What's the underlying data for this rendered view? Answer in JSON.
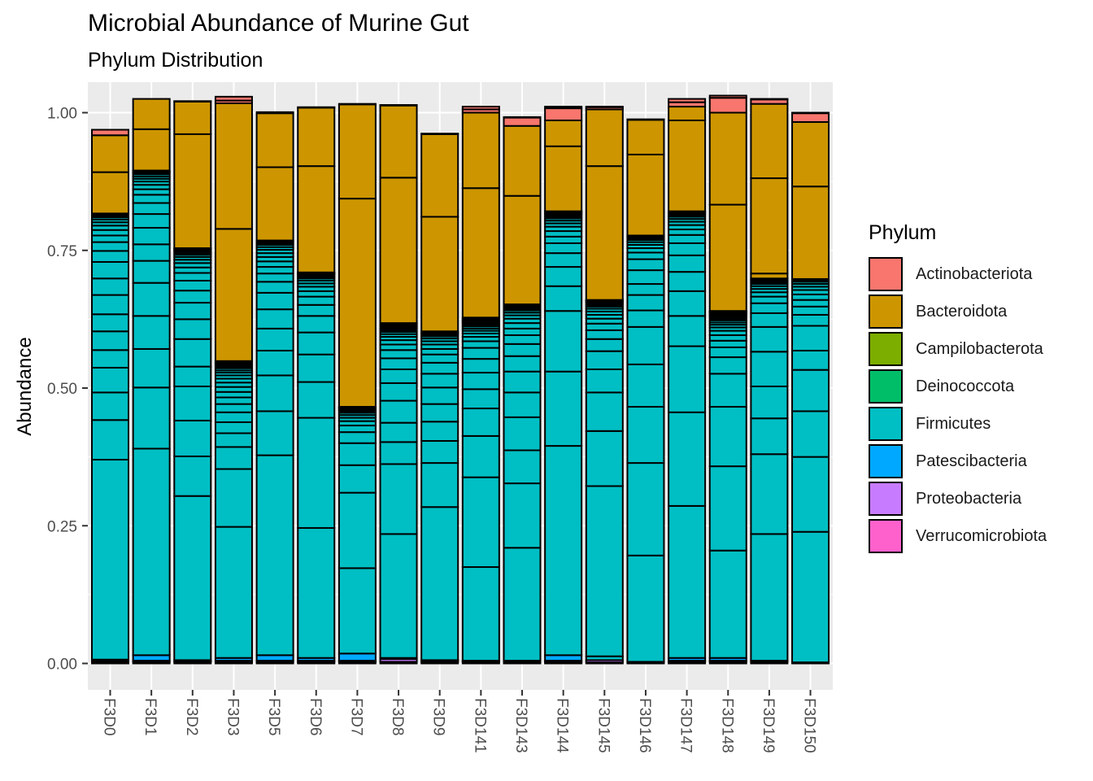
{
  "title": "Microbial Abundance of Murine Gut",
  "subtitle": "Phylum Distribution",
  "chart_data": {
    "type": "bar",
    "stacked": true,
    "title": "Microbial Abundance of Murine Gut",
    "subtitle": "Phylum Distribution",
    "xlabel": "",
    "ylabel": "Abundance",
    "ylim": [
      0,
      1
    ],
    "yticks": [
      "0.00",
      "0.25",
      "0.50",
      "0.75",
      "1.00"
    ],
    "grid": true,
    "x_tick_rotation": 90,
    "legend_position": "right",
    "legend_title": "Phylum",
    "categories": [
      "F3D0",
      "F3D1",
      "F3D2",
      "F3D3",
      "F3D5",
      "F3D6",
      "F3D7",
      "F3D8",
      "F3D9",
      "F3D141",
      "F3D143",
      "F3D144",
      "F3D145",
      "F3D146",
      "F3D147",
      "F3D148",
      "F3D149",
      "F3D150"
    ],
    "legend": [
      {
        "name": "Actinobacteriota",
        "color": "#F8766D"
      },
      {
        "name": "Bacteroidota",
        "color": "#CD9600"
      },
      {
        "name": "Campilobacterota",
        "color": "#7CAE00"
      },
      {
        "name": "Deinococcota",
        "color": "#00BE67"
      },
      {
        "name": "Firmicutes",
        "color": "#00BFC4"
      },
      {
        "name": "Patescibacteria",
        "color": "#00A9FF"
      },
      {
        "name": "Proteobacteria",
        "color": "#C77CFF"
      },
      {
        "name": "Verrucomicrobiota",
        "color": "#FF61CC"
      }
    ],
    "stack_order_bottom_to_top": [
      "Verrucomicrobiota",
      "Proteobacteria",
      "Patescibacteria",
      "Firmicutes",
      "Deinococcota",
      "Campilobacterota",
      "Bacteroidota",
      "Actinobacteriota"
    ],
    "samples": [
      {
        "sample": "F3D0",
        "Verrucomicrobiota": [
          0.002
        ],
        "Proteobacteria": [
          0.002
        ],
        "Patescibacteria": [],
        "Firmicutes": [
          0.003,
          0.363,
          0.072,
          0.05,
          0.045,
          0.032,
          0.034,
          0.031,
          0.035,
          0.03,
          0.03,
          0.02,
          0.016,
          0.012,
          0.01,
          0.008,
          0.006,
          0.005,
          0.004,
          0.003,
          0.002,
          0.002
        ],
        "Deinococcota": [],
        "Campilobacterota": [],
        "Bacteroidota": [
          0.075,
          0.067
        ],
        "Actinobacteriota": [
          0.01
        ]
      },
      {
        "sample": "F3D1",
        "Verrucomicrobiota": [
          0.002
        ],
        "Proteobacteria": [
          0.003
        ],
        "Patescibacteria": [
          0.01
        ],
        "Firmicutes": [
          0.375,
          0.111,
          0.07,
          0.06,
          0.06,
          0.04,
          0.03,
          0.03,
          0.025,
          0.02,
          0.015,
          0.01,
          0.008,
          0.006,
          0.005,
          0.004,
          0.004,
          0.003,
          0.002,
          0.002
        ],
        "Deinococcota": [],
        "Campilobacterota": [],
        "Bacteroidota": [
          0.075,
          0.055
        ],
        "Actinobacteriota": []
      },
      {
        "sample": "F3D2",
        "Verrucomicrobiota": [
          0.003
        ],
        "Proteobacteria": [
          0.003
        ],
        "Patescibacteria": [],
        "Firmicutes": [
          0.298,
          0.072,
          0.065,
          0.062,
          0.036,
          0.05,
          0.036,
          0.03,
          0.022,
          0.018,
          0.014,
          0.01,
          0.008,
          0.006,
          0.005,
          0.004,
          0.003,
          0.003,
          0.002,
          0.002,
          0.002
        ],
        "Deinococcota": [],
        "Campilobacterota": [],
        "Bacteroidota": [
          0.207,
          0.059
        ],
        "Actinobacteriota": [
          0.001
        ]
      },
      {
        "sample": "F3D3",
        "Verrucomicrobiota": [
          0.002
        ],
        "Proteobacteria": [
          0.003
        ],
        "Patescibacteria": [
          0.005
        ],
        "Firmicutes": [
          0.238,
          0.105,
          0.04,
          0.025,
          0.02,
          0.018,
          0.015,
          0.012,
          0.01,
          0.009,
          0.008,
          0.007,
          0.006,
          0.005,
          0.004,
          0.004,
          0.003,
          0.003,
          0.002,
          0.002,
          0.002,
          0.001
        ],
        "Deinococcota": [],
        "Campilobacterota": [],
        "Bacteroidota": [
          0.24,
          0.228
        ],
        "Actinobacteriota": [
          0.005,
          0.007
        ]
      },
      {
        "sample": "F3D5",
        "Verrucomicrobiota": [
          0.002
        ],
        "Proteobacteria": [
          0.003
        ],
        "Patescibacteria": [
          0.01
        ],
        "Firmicutes": [
          0.363,
          0.08,
          0.065,
          0.045,
          0.04,
          0.035,
          0.03,
          0.02,
          0.015,
          0.012,
          0.01,
          0.008,
          0.007,
          0.006,
          0.005,
          0.004,
          0.003,
          0.003,
          0.002
        ],
        "Deinococcota": [],
        "Campilobacterota": [],
        "Bacteroidota": [
          0.133,
          0.098
        ],
        "Actinobacteriota": [
          0.002
        ]
      },
      {
        "sample": "F3D6",
        "Verrucomicrobiota": [
          0.002
        ],
        "Proteobacteria": [
          0.003
        ],
        "Patescibacteria": [
          0.005
        ],
        "Firmicutes": [
          0.236,
          0.2,
          0.065,
          0.05,
          0.04,
          0.03,
          0.02,
          0.015,
          0.01,
          0.008,
          0.006,
          0.005,
          0.004,
          0.003,
          0.003,
          0.002,
          0.002,
          0.001
        ],
        "Deinococcota": [],
        "Campilobacterota": [],
        "Bacteroidota": [
          0.193,
          0.106
        ],
        "Actinobacteriota": [
          0.001
        ]
      },
      {
        "sample": "F3D7",
        "Verrucomicrobiota": [
          0.003
        ],
        "Proteobacteria": [
          0.002
        ],
        "Patescibacteria": [
          0.013
        ],
        "Firmicutes": [
          0.155,
          0.137,
          0.05,
          0.04,
          0.02,
          0.012,
          0.008,
          0.006,
          0.005,
          0.004,
          0.003,
          0.002,
          0.002,
          0.002,
          0.001,
          0.001
        ],
        "Deinococcota": [],
        "Campilobacterota": [],
        "Bacteroidota": [
          0.378,
          0.171
        ],
        "Actinobacteriota": [
          0.001
        ]
      },
      {
        "sample": "F3D8",
        "Verrucomicrobiota": [
          0.003
        ],
        "Proteobacteria": [
          0.005
        ],
        "Patescibacteria": [
          0.002
        ],
        "Firmicutes": [
          0.225,
          0.127,
          0.04,
          0.035,
          0.04,
          0.032,
          0.025,
          0.02,
          0.015,
          0.01,
          0.008,
          0.006,
          0.005,
          0.004,
          0.003,
          0.003,
          0.002,
          0.002,
          0.002,
          0.002,
          0.001,
          0.001
        ],
        "Deinococcota": [],
        "Campilobacterota": [],
        "Bacteroidota": [
          0.264,
          0.131
        ],
        "Actinobacteriota": [
          0.001
        ]
      },
      {
        "sample": "F3D9",
        "Verrucomicrobiota": [
          0.002
        ],
        "Proteobacteria": [
          0.003
        ],
        "Patescibacteria": [
          0.001
        ],
        "Firmicutes": [
          0.278,
          0.08,
          0.04,
          0.035,
          0.032,
          0.03,
          0.025,
          0.02,
          0.015,
          0.01,
          0.008,
          0.006,
          0.005,
          0.004,
          0.003,
          0.002,
          0.002,
          0.002
        ],
        "Deinococcota": [],
        "Campilobacterota": [],
        "Bacteroidota": [
          0.208,
          0.15
        ],
        "Actinobacteriota": [
          0.001
        ]
      },
      {
        "sample": "F3D141",
        "Verrucomicrobiota": [
          0.002
        ],
        "Proteobacteria": [
          0.002
        ],
        "Patescibacteria": [
          0.001
        ],
        "Firmicutes": [
          0.17,
          0.163,
          0.075,
          0.05,
          0.035,
          0.03,
          0.025,
          0.02,
          0.012,
          0.008,
          0.006,
          0.005,
          0.004,
          0.004,
          0.003,
          0.003,
          0.002,
          0.002,
          0.002,
          0.002,
          0.002
        ],
        "Deinococcota": [],
        "Campilobacterota": [],
        "Bacteroidota": [
          0.235,
          0.137
        ],
        "Actinobacteriota": [
          0.006,
          0.005
        ]
      },
      {
        "sample": "F3D143",
        "Verrucomicrobiota": [
          0.002
        ],
        "Proteobacteria": [
          0.002
        ],
        "Patescibacteria": [
          0.001
        ],
        "Firmicutes": [
          0.205,
          0.117,
          0.06,
          0.06,
          0.045,
          0.038,
          0.028,
          0.022,
          0.016,
          0.012,
          0.01,
          0.008,
          0.006,
          0.005,
          0.004,
          0.003,
          0.003,
          0.002,
          0.002,
          0.001
        ],
        "Deinococcota": [],
        "Campilobacterota": [],
        "Bacteroidota": [
          0.197,
          0.127
        ],
        "Actinobacteriota": [
          0.015,
          0.001
        ]
      },
      {
        "sample": "F3D144",
        "Verrucomicrobiota": [
          0.002
        ],
        "Proteobacteria": [
          0.003
        ],
        "Patescibacteria": [
          0.01
        ],
        "Firmicutes": [
          0.38,
          0.135,
          0.11,
          0.045,
          0.035,
          0.025,
          0.018,
          0.012,
          0.01,
          0.008,
          0.006,
          0.005,
          0.004,
          0.003,
          0.003,
          0.002,
          0.002,
          0.002,
          0.001
        ],
        "Deinococcota": [],
        "Campilobacterota": [],
        "Bacteroidota": [
          0.118,
          0.047
        ],
        "Actinobacteriota": [
          0.022,
          0.003
        ]
      },
      {
        "sample": "F3D145",
        "Verrucomicrobiota": [
          0.002
        ],
        "Proteobacteria": [
          0.004
        ],
        "Patescibacteria": [],
        "Firmicutes": [
          0.007,
          0.309,
          0.1,
          0.07,
          0.042,
          0.033,
          0.022,
          0.016,
          0.012,
          0.009,
          0.007,
          0.006,
          0.005,
          0.004,
          0.003,
          0.003,
          0.002,
          0.002,
          0.001,
          0.001
        ],
        "Deinococcota": [],
        "Campilobacterota": [],
        "Bacteroidota": [
          0.243,
          0.103
        ],
        "Actinobacteriota": [
          0.004,
          0.001
        ]
      },
      {
        "sample": "F3D146",
        "Verrucomicrobiota": [
          0.001
        ],
        "Proteobacteria": [
          0.001
        ],
        "Patescibacteria": [
          0.001
        ],
        "Firmicutes": [
          0.193,
          0.168,
          0.102,
          0.077,
          0.068,
          0.03,
          0.028,
          0.02,
          0.025,
          0.02,
          0.012,
          0.008,
          0.006,
          0.005,
          0.004,
          0.003,
          0.002,
          0.002,
          0.001
        ],
        "Deinococcota": [],
        "Campilobacterota": [],
        "Bacteroidota": [
          0.147,
          0.063
        ],
        "Actinobacteriota": [
          0.001
        ]
      },
      {
        "sample": "F3D147",
        "Verrucomicrobiota": [
          0.003
        ],
        "Proteobacteria": [
          0.002
        ],
        "Patescibacteria": [
          0.005
        ],
        "Firmicutes": [
          0.276,
          0.17,
          0.12,
          0.055,
          0.045,
          0.035,
          0.03,
          0.022,
          0.015,
          0.01,
          0.008,
          0.006,
          0.005,
          0.004,
          0.003,
          0.002,
          0.002,
          0.002,
          0.001
        ],
        "Deinococcota": [],
        "Campilobacterota": [],
        "Bacteroidota": [
          0.165,
          0.025
        ],
        "Actinobacteriota": [
          0.008,
          0.006
        ]
      },
      {
        "sample": "F3D148",
        "Verrucomicrobiota": [
          0.003
        ],
        "Proteobacteria": [
          0.002
        ],
        "Patescibacteria": [
          0.005
        ],
        "Firmicutes": [
          0.195,
          0.153,
          0.108,
          0.06,
          0.03,
          0.018,
          0.012,
          0.01,
          0.008,
          0.006,
          0.005,
          0.004,
          0.004,
          0.003,
          0.003,
          0.002,
          0.002,
          0.002,
          0.002,
          0.001,
          0.001,
          0.001
        ],
        "Deinococcota": [],
        "Campilobacterota": [],
        "Bacteroidota": [
          0.193,
          0.167
        ],
        "Actinobacteriota": [
          0.027,
          0.004
        ]
      },
      {
        "sample": "F3D149",
        "Verrucomicrobiota": [
          0.003
        ],
        "Proteobacteria": [
          0.002
        ],
        "Patescibacteria": [],
        "Firmicutes": [
          0.23,
          0.145,
          0.065,
          0.058,
          0.063,
          0.045,
          0.025,
          0.018,
          0.012,
          0.008,
          0.006,
          0.005,
          0.004,
          0.003,
          0.003,
          0.002,
          0.002
        ],
        "Deinococcota": [],
        "Campilobacterota": [],
        "Bacteroidota": [
          0.009,
          0.173,
          0.135
        ],
        "Actinobacteriota": [
          0.008,
          0.001
        ]
      },
      {
        "sample": "F3D150",
        "Verrucomicrobiota": [],
        "Proteobacteria": [
          0.002
        ],
        "Patescibacteria": [],
        "Firmicutes": [
          0.237,
          0.136,
          0.083,
          0.075,
          0.035,
          0.045,
          0.02,
          0.015,
          0.012,
          0.01,
          0.008,
          0.006,
          0.005,
          0.004,
          0.003,
          0.002
        ],
        "Deinococcota": [],
        "Campilobacterota": [],
        "Bacteroidota": [
          0.168,
          0.117
        ],
        "Actinobacteriota": [
          0.016,
          0.001
        ]
      }
    ]
  }
}
